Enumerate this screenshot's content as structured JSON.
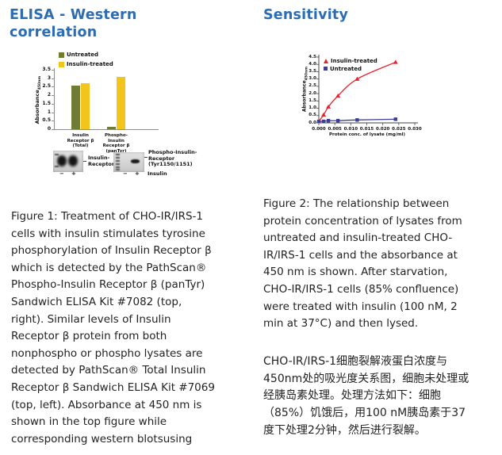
{
  "page": {
    "left_heading": [
      "ELISA - Western",
      "correlation"
    ],
    "right_heading": "Sensitivity",
    "heading_color": "#2b6cb3"
  },
  "figure1": {
    "blots": {
      "left_label": [
        "Insulin-",
        "Receptor β"
      ],
      "right_label": [
        "Phospho-Insulin-",
        "Receptor",
        "(Tyr1150/1151)"
      ],
      "lane_signs": [
        "−",
        "+",
        "−",
        "+"
      ],
      "insulin_row_label": "Insulin"
    },
    "caption": [
      "Figure 1: Treatment of CHO-IR/IRS-1",
      "cells with insulin stimulates tyrosine",
      "phosphorylation of Insulin Receptor β",
      "which is detected by the PathScan®",
      "Phospho-Insulin Receptor β (panTyr)",
      "Sandwich ELISA Kit #7082 (top,",
      "right). Similar levels of Insulin",
      "Receptor β protein from both",
      "nonphospho or phospho lysates are",
      "detected by PathScan® Total Insulin",
      "Receptor β Sandwich ELISA Kit #7069",
      "(top, left). Absorbance at 450 nm is",
      "shown in the top figure while",
      "corresponding western blotsusing"
    ]
  },
  "figure2": {
    "caption_en": [
      "Figure 2: The relationship between",
      "protein concentration of lysates from",
      "untreated and insulin-treated CHO-",
      "IR/IRS-1 cells and the absorbance at",
      "450 nm is shown. After starvation,",
      "CHO-IR/IRS-1 cells (85% confluence)",
      "were treated with insulin (100 nM, 2",
      "min at 37°C) and then lysed."
    ],
    "caption_zh": [
      "CHO-IR/IRS-1细胞裂解液蛋白浓度与",
      "450nm处的吸光度关系图，细胞未处理或",
      "经胰岛素处理。处理方法如下：细胞",
      "（85%）饥饿后，用100 nM胰岛素于37",
      "度下处理2分钟，然后进行裂解。"
    ]
  },
  "chart_data": [
    {
      "id": "elisa-western-bars",
      "type": "bar",
      "title": "",
      "categories": [
        "Insulin\nReceptor β\n(Total)",
        "Phospho-\nInsulin\nReceptor β\n(panTyr)"
      ],
      "series": [
        {
          "name": "Untreated",
          "color": "#6f7c34",
          "values": [
            2.55,
            0.15
          ]
        },
        {
          "name": "Insulin-treated",
          "color": "#f2c41c",
          "values": [
            2.7,
            3.1
          ]
        }
      ],
      "xlabel": "",
      "ylabel": "Absorbance",
      "ylabel_sub": "450nm",
      "ylim": [
        0,
        3.5
      ],
      "y_ticks": [
        "0",
        "0.5",
        "1",
        "1.5",
        "2",
        "2.5",
        "3",
        "3.5"
      ],
      "legend_position": "top-left",
      "grid": false
    },
    {
      "id": "sensitivity-curve",
      "type": "line",
      "title": "",
      "x": [
        0.0,
        0.0015,
        0.003,
        0.006,
        0.012,
        0.024
      ],
      "series": [
        {
          "name": "Insulin-treated",
          "color": "#e8212e",
          "marker": "triangle",
          "values": [
            0.1,
            0.55,
            1.1,
            1.85,
            3.0,
            4.15
          ]
        },
        {
          "name": "Untreated",
          "color": "#3c3f92",
          "marker": "square",
          "values": [
            0.1,
            0.1,
            0.15,
            0.15,
            0.2,
            0.25
          ]
        }
      ],
      "xlabel": "Protein conc. of lysate (mg/ml)",
      "ylabel": "Absorbance",
      "ylabel_sub": "450nm",
      "xlim": [
        0,
        0.03
      ],
      "ylim": [
        0,
        4.5
      ],
      "x_ticks": [
        "0.000",
        "0.005",
        "0.010",
        "0.015",
        "0.020",
        "0.025",
        "0.030"
      ],
      "y_ticks": [
        "0.0",
        "0.5",
        "1.0",
        "1.5",
        "2.0",
        "2.5",
        "3.0",
        "3.5",
        "4.0",
        "4.5"
      ],
      "legend_position": "top-left",
      "grid": false
    }
  ]
}
